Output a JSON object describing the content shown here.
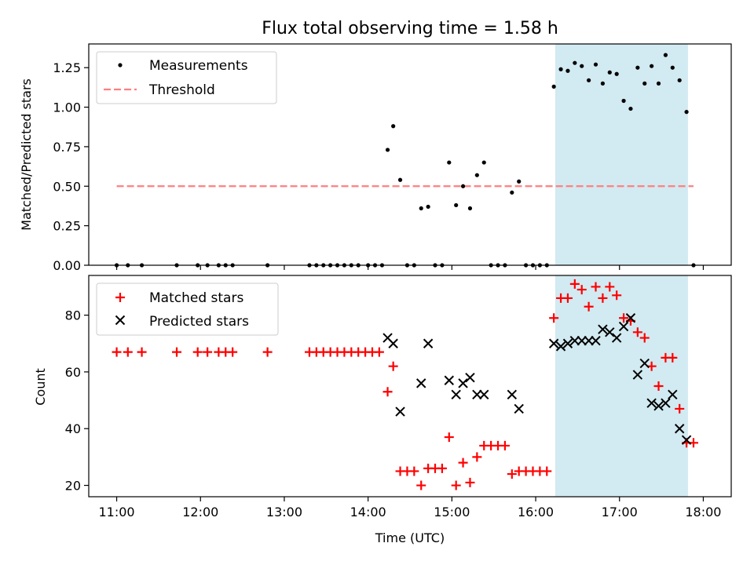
{
  "chart_data": [
    {
      "type": "scatter",
      "title": "Flux total observing time = 1.58 h",
      "ylabel": "Matched/Predicted stars",
      "xlabel": "",
      "ylim": [
        0,
        1.4
      ],
      "xlim": [
        "10:40",
        "18:20"
      ],
      "grid": false,
      "legend": "top-left",
      "yticks": [
        "0.00",
        "0.25",
        "0.50",
        "0.75",
        "1.00",
        "1.25"
      ],
      "highlight_span": {
        "from": "16:14",
        "to": "17:49",
        "color": "#add8e6"
      },
      "series": [
        {
          "name": "Measurements",
          "marker": "dot",
          "color": "#000000",
          "x": [
            "11:00",
            "11:08",
            "11:18",
            "11:43",
            "11:58",
            "12:05",
            "12:13",
            "12:18",
            "12:23",
            "12:48",
            "13:18",
            "13:23",
            "13:28",
            "13:33",
            "13:38",
            "13:43",
            "13:48",
            "13:53",
            "14:00",
            "14:05",
            "14:10",
            "14:14",
            "14:18",
            "14:23",
            "14:28",
            "14:33",
            "14:38",
            "14:43",
            "14:48",
            "14:53",
            "14:58",
            "15:03",
            "15:08",
            "15:13",
            "15:18",
            "15:23",
            "15:28",
            "15:33",
            "15:38",
            "15:43",
            "15:48",
            "15:53",
            "15:58",
            "16:03",
            "16:08",
            "16:13",
            "16:18",
            "16:23",
            "16:28",
            "16:33",
            "16:38",
            "16:43",
            "16:48",
            "16:53",
            "16:58",
            "17:03",
            "17:08",
            "17:13",
            "17:18",
            "17:23",
            "17:28",
            "17:33",
            "17:38",
            "17:43",
            "17:48",
            "17:53"
          ],
          "y": [
            0,
            0,
            0,
            0,
            0,
            0,
            0,
            0,
            0,
            0,
            0,
            0,
            0,
            0,
            0,
            0,
            0,
            0,
            0,
            0,
            0,
            0.73,
            0.88,
            0.54,
            0,
            0,
            0.36,
            0.37,
            0,
            0,
            0.65,
            0.38,
            0.5,
            0.36,
            0.57,
            0.65,
            0,
            0,
            0,
            0.46,
            0.53,
            0,
            0,
            0,
            0,
            1.13,
            1.24,
            1.23,
            1.28,
            1.26,
            1.17,
            1.27,
            1.15,
            1.22,
            1.21,
            1.04,
            0.99,
            1.25,
            1.15,
            1.26,
            1.15,
            1.33,
            1.25,
            1.17,
            0.97,
            0
          ]
        },
        {
          "name": "Threshold",
          "marker": "dashed-line",
          "color": "#ff7f7f",
          "x": [
            "11:00",
            "17:53"
          ],
          "y": [
            0.5,
            0.5
          ]
        }
      ]
    },
    {
      "type": "scatter",
      "title": "",
      "ylabel": "Count",
      "xlabel": "Time (UTC)",
      "ylim": [
        16,
        94
      ],
      "xlim": [
        "10:40",
        "18:20"
      ],
      "grid": false,
      "legend": "top-left",
      "xticks": [
        "11:00",
        "12:00",
        "13:00",
        "14:00",
        "15:00",
        "16:00",
        "17:00",
        "18:00"
      ],
      "yticks": [
        "20",
        "40",
        "60",
        "80"
      ],
      "highlight_span": {
        "from": "16:14",
        "to": "17:49",
        "color": "#add8e6"
      },
      "series": [
        {
          "name": "Matched stars",
          "marker": "plus",
          "color": "#ff0000",
          "x": [
            "11:00",
            "11:08",
            "11:18",
            "11:43",
            "11:58",
            "12:05",
            "12:13",
            "12:18",
            "12:23",
            "12:48",
            "13:18",
            "13:23",
            "13:28",
            "13:33",
            "13:38",
            "13:43",
            "13:48",
            "13:53",
            "13:58",
            "14:03",
            "14:08",
            "14:14",
            "14:18",
            "14:23",
            "14:28",
            "14:33",
            "14:38",
            "14:43",
            "14:48",
            "14:53",
            "14:58",
            "15:03",
            "15:08",
            "15:13",
            "15:18",
            "15:23",
            "15:28",
            "15:33",
            "15:38",
            "15:43",
            "15:48",
            "15:53",
            "15:58",
            "16:03",
            "16:08",
            "16:13",
            "16:18",
            "16:23",
            "16:28",
            "16:33",
            "16:38",
            "16:43",
            "16:48",
            "16:53",
            "16:58",
            "17:03",
            "17:08",
            "17:13",
            "17:18",
            "17:23",
            "17:28",
            "17:33",
            "17:38",
            "17:43",
            "17:48",
            "17:53"
          ],
          "y": [
            67,
            67,
            67,
            67,
            67,
            67,
            67,
            67,
            67,
            67,
            67,
            67,
            67,
            67,
            67,
            67,
            67,
            67,
            67,
            67,
            67,
            53,
            62,
            25,
            25,
            25,
            20,
            26,
            26,
            26,
            37,
            20,
            28,
            21,
            30,
            34,
            34,
            34,
            34,
            24,
            25,
            25,
            25,
            25,
            25,
            79,
            86,
            86,
            91,
            89,
            83,
            90,
            86,
            90,
            87,
            79,
            78,
            74,
            72,
            62,
            55,
            65,
            65,
            47,
            35,
            35
          ]
        },
        {
          "name": "Predicted stars",
          "marker": "x",
          "color": "#000000",
          "x": [
            "14:14",
            "14:18",
            "14:23",
            "14:38",
            "14:43",
            "14:58",
            "15:03",
            "15:08",
            "15:13",
            "15:18",
            "15:23",
            "15:43",
            "15:48",
            "16:13",
            "16:18",
            "16:23",
            "16:28",
            "16:33",
            "16:38",
            "16:43",
            "16:48",
            "16:53",
            "16:58",
            "17:03",
            "17:08",
            "17:13",
            "17:18",
            "17:23",
            "17:28",
            "17:33",
            "17:38",
            "17:43",
            "17:48"
          ],
          "y": [
            72,
            70,
            46,
            56,
            70,
            57,
            52,
            56,
            58,
            52,
            52,
            52,
            47,
            70,
            69,
            70,
            71,
            71,
            71,
            71,
            75,
            74,
            72,
            76,
            79,
            59,
            63,
            49,
            48,
            49,
            52,
            40,
            36
          ]
        }
      ]
    }
  ]
}
